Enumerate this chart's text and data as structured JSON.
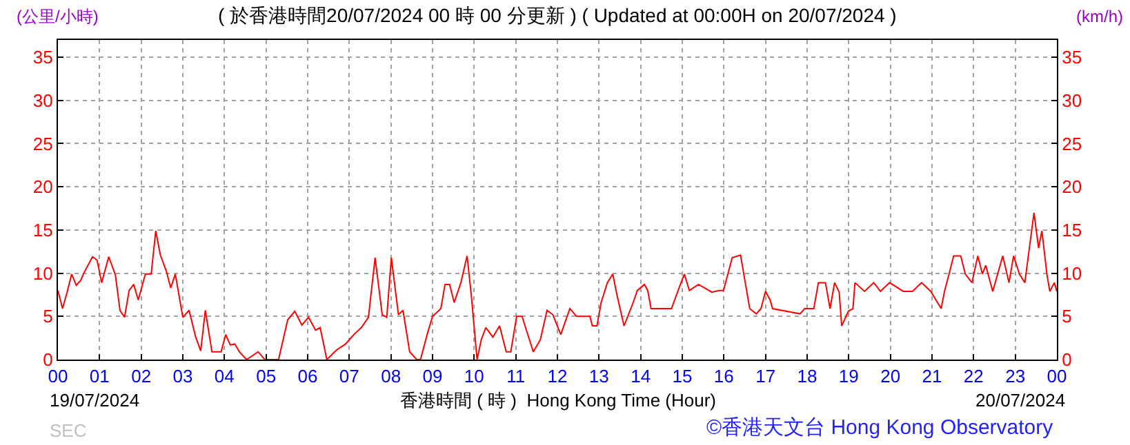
{
  "chart_data": {
    "type": "line",
    "title": "( 於香港時間20/07/2024 00 時 00 分更新 ) ( Updated at 00:00H on 20/07/2024 )",
    "xlabel": "香港時間 ( 時 )  Hong Kong Time (Hour)",
    "ylabel": "(公里/小時)",
    "y2label": "(km/h)",
    "annotations": [
      "19/07/2024",
      "20/07/2024",
      "SEC",
      "©香港天文台 Hong Kong Observatory"
    ],
    "x": [
      0,
      0.11,
      0.22,
      0.33,
      0.44,
      0.55,
      0.61,
      0.83,
      0.94,
      1.05,
      1.22,
      1.38,
      1.49,
      1.6,
      1.71,
      1.82,
      1.93,
      2.1,
      2.24,
      2.35,
      2.46,
      2.6,
      2.71,
      2.82,
      3.0,
      3.15,
      3.31,
      3.43,
      3.54,
      3.7,
      3.92,
      4.03,
      4.14,
      4.25,
      4.36,
      4.53,
      4.81,
      4.97,
      5.3,
      5.52,
      5.69,
      5.86,
      6.02,
      6.19,
      6.3,
      6.46,
      6.69,
      6.91,
      7.13,
      7.29,
      7.46,
      7.62,
      7.79,
      7.9,
      8.01,
      8.18,
      8.29,
      8.45,
      8.62,
      8.71,
      8.87,
      9.0,
      9.2,
      9.3,
      9.41,
      9.52,
      9.68,
      9.83,
      9.93,
      10.07,
      10.17,
      10.28,
      10.45,
      10.61,
      10.77,
      10.88,
      11.02,
      11.15,
      11.42,
      11.59,
      11.75,
      11.89,
      12.08,
      12.3,
      12.46,
      12.78,
      12.84,
      12.95,
      13.05,
      13.2,
      13.33,
      13.43,
      13.6,
      13.82,
      13.92,
      14.09,
      14.17,
      14.25,
      14.74,
      14.9,
      15.05,
      15.17,
      15.39,
      15.71,
      15.88,
      15.99,
      16.2,
      16.4,
      16.62,
      16.78,
      16.89,
      17.0,
      17.11,
      17.17,
      17.83,
      17.94,
      18.16,
      18.27,
      18.44,
      18.55,
      18.66,
      18.77,
      18.83,
      18.99,
      19.1,
      19.15,
      19.38,
      19.6,
      19.76,
      19.98,
      20.31,
      20.53,
      20.75,
      20.97,
      21.22,
      21.3,
      21.41,
      21.52,
      21.69,
      21.8,
      21.96,
      22.1,
      22.21,
      22.29,
      22.46,
      22.7,
      22.85,
      22.96,
      23.1,
      23.23,
      23.45,
      23.56,
      23.64,
      23.76,
      23.83,
      23.94,
      24.0
    ],
    "series": [
      {
        "color": "#ff0000",
        "values": [
          8,
          5.9,
          7.8,
          9.9,
          8.6,
          9.2,
          9.9,
          11.9,
          11.5,
          8.9,
          11.9,
          9.8,
          5.7,
          4.9,
          8,
          8.7,
          6.9,
          9.9,
          9.9,
          14.9,
          12.1,
          10.3,
          8.3,
          9.9,
          4.9,
          5.7,
          2.6,
          1,
          5.7,
          0.9,
          0.9,
          2.9,
          1.7,
          1.8,
          0.9,
          0,
          0.9,
          0,
          0,
          4.6,
          5.6,
          4,
          4.9,
          3.4,
          3.7,
          0,
          1.1,
          1.8,
          3,
          3.7,
          4.9,
          11.8,
          5.2,
          4.9,
          11.8,
          5.2,
          5.7,
          0.9,
          0,
          0,
          2.9,
          5,
          5.9,
          8.7,
          8.7,
          6.6,
          8.9,
          12,
          7.5,
          0,
          2.3,
          3.7,
          2.6,
          3.9,
          0.9,
          0.9,
          5,
          5,
          0.9,
          2.3,
          5.7,
          5.2,
          2.9,
          5.9,
          5,
          5,
          3.9,
          3.9,
          6.6,
          8.9,
          9.9,
          7.5,
          3.9,
          6.6,
          8,
          8.7,
          8,
          5.9,
          5.9,
          8,
          9.9,
          8,
          8.7,
          7.8,
          8,
          8,
          11.8,
          12.1,
          5.9,
          5.3,
          5.9,
          7.9,
          6.9,
          5.9,
          5.3,
          5.9,
          5.9,
          8.9,
          8.9,
          5.9,
          8.9,
          7.8,
          3.9,
          5.6,
          5.9,
          8.9,
          7.9,
          8.9,
          7.9,
          8.9,
          7.9,
          7.9,
          8.9,
          7.9,
          5.9,
          7.9,
          9.9,
          12,
          12,
          9.9,
          8.9,
          12,
          9.9,
          10.9,
          7.9,
          12,
          8.9,
          12,
          9.9,
          8.9,
          17,
          12.9,
          14.9,
          9.9,
          7.9,
          8.9,
          7.9
        ]
      }
    ],
    "xlim": [
      0,
      24
    ],
    "xticks": [
      {
        "value": 0,
        "label": "00"
      },
      {
        "value": 1,
        "label": "01"
      },
      {
        "value": 2,
        "label": "02"
      },
      {
        "value": 3,
        "label": "03"
      },
      {
        "value": 4,
        "label": "04"
      },
      {
        "value": 5,
        "label": "05"
      },
      {
        "value": 6,
        "label": "06"
      },
      {
        "value": 7,
        "label": "07"
      },
      {
        "value": 8,
        "label": "08"
      },
      {
        "value": 9,
        "label": "09"
      },
      {
        "value": 10,
        "label": "10"
      },
      {
        "value": 11,
        "label": "11"
      },
      {
        "value": 12,
        "label": "12"
      },
      {
        "value": 13,
        "label": "13"
      },
      {
        "value": 14,
        "label": "14"
      },
      {
        "value": 15,
        "label": "15"
      },
      {
        "value": 16,
        "label": "16"
      },
      {
        "value": 17,
        "label": "17"
      },
      {
        "value": 18,
        "label": "18"
      },
      {
        "value": 19,
        "label": "19"
      },
      {
        "value": 20,
        "label": "20"
      },
      {
        "value": 21,
        "label": "21"
      },
      {
        "value": 22,
        "label": "22"
      },
      {
        "value": 23,
        "label": "23"
      },
      {
        "value": 24,
        "label": "00"
      }
    ],
    "ylim": [
      0,
      37
    ],
    "yticks": [
      0,
      5,
      10,
      15,
      20,
      25,
      30,
      35
    ],
    "y2lim": [
      0,
      37
    ],
    "y2ticks": [
      0,
      5,
      10,
      15,
      20,
      25,
      30,
      35
    ],
    "grid": true,
    "marker": "none",
    "line_style": "solid"
  }
}
